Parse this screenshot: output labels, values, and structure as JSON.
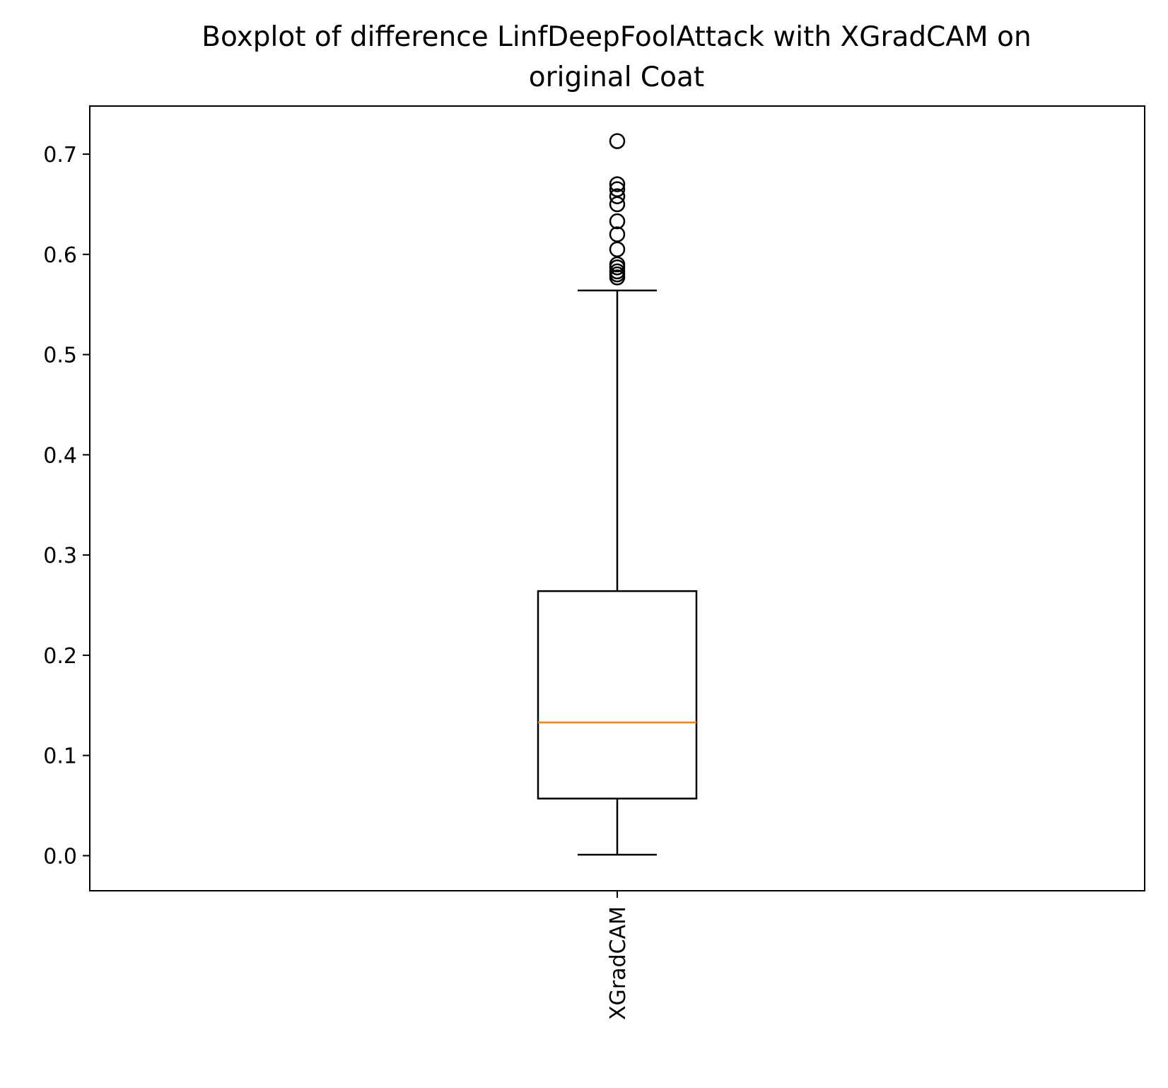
{
  "chart_data": {
    "type": "box",
    "title_lines": [
      "Boxplot of difference LinfDeepFoolAttack with XGradCAM on",
      "original Coat"
    ],
    "xlabel": "",
    "ylabel": "",
    "ylim": [
      -0.035,
      0.748
    ],
    "yticks": [
      "0.0",
      "0.1",
      "0.2",
      "0.3",
      "0.4",
      "0.5",
      "0.6",
      "0.7"
    ],
    "grid": false,
    "categories": [
      "XGradCAM"
    ],
    "boxes": [
      {
        "category": "XGradCAM",
        "whisker_low": 0.001,
        "q1": 0.057,
        "median": 0.133,
        "q3": 0.264,
        "whisker_high": 0.564,
        "outliers": [
          0.577,
          0.58,
          0.583,
          0.587,
          0.59,
          0.605,
          0.62,
          0.633,
          0.65,
          0.658,
          0.665,
          0.67,
          0.713
        ]
      }
    ],
    "colors": {
      "box": "#000000",
      "median": "#ff7f0e",
      "outlier": "#000000"
    }
  }
}
